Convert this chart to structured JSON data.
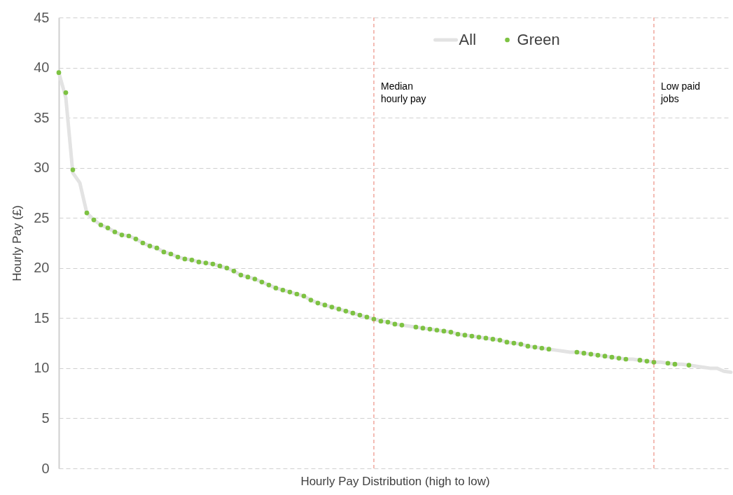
{
  "chart_data": {
    "type": "line",
    "xlabel": "Hourly Pay Distribution (high to low)",
    "ylabel": "Hourly Pay (£)",
    "categories": [
      null,
      null,
      null,
      null,
      null,
      null,
      null,
      null,
      null,
      null,
      null,
      null,
      null,
      null,
      null,
      null,
      null,
      null,
      null,
      null,
      null,
      null,
      null,
      null,
      null,
      null,
      null,
      null,
      null,
      null,
      null,
      null,
      null,
      null,
      null,
      null,
      null,
      null,
      null,
      null,
      null,
      null,
      null,
      null,
      null,
      null,
      null,
      null,
      null,
      null,
      null,
      null,
      null,
      null,
      null,
      null,
      null,
      null,
      null,
      null,
      null,
      null,
      null,
      null,
      null,
      null,
      null,
      null,
      null,
      null,
      null,
      null,
      null,
      null,
      null,
      null,
      null,
      null,
      null,
      null,
      null,
      null,
      null,
      null,
      null,
      null,
      null,
      null,
      null,
      null,
      null,
      null,
      null,
      null,
      null,
      null,
      null
    ],
    "series": [
      {
        "name": "All",
        "color": "#e3e3e3",
        "values": [
          39.5,
          37.0,
          29.5,
          28.5,
          25.5,
          24.8,
          24.3,
          24.0,
          23.6,
          23.3,
          23.2,
          22.9,
          22.5,
          22.2,
          22.0,
          21.6,
          21.4,
          21.1,
          20.9,
          20.8,
          20.6,
          20.5,
          20.4,
          20.2,
          20.0,
          19.7,
          19.3,
          19.1,
          18.9,
          18.6,
          18.3,
          18.0,
          17.8,
          17.6,
          17.4,
          17.2,
          16.8,
          16.5,
          16.3,
          16.1,
          15.9,
          15.7,
          15.5,
          15.3,
          15.1,
          14.9,
          14.7,
          14.6,
          14.4,
          14.3,
          14.2,
          14.1,
          14.0,
          13.9,
          13.8,
          13.7,
          13.6,
          13.4,
          13.3,
          13.2,
          13.1,
          13.0,
          12.9,
          12.8,
          12.6,
          12.5,
          12.4,
          12.2,
          12.1,
          12.0,
          11.9,
          11.8,
          11.7,
          11.6,
          11.6,
          11.5,
          11.4,
          11.3,
          11.2,
          11.1,
          11.0,
          10.9,
          10.9,
          10.8,
          10.7,
          10.6,
          10.6,
          10.5,
          10.4,
          10.4,
          10.3,
          10.2,
          10.1,
          10.0,
          10.0,
          9.7,
          9.6
        ]
      },
      {
        "name": "Green",
        "type": "scatter",
        "marker": "circle",
        "color": "#7dc242",
        "values": [
          39.5,
          37.5,
          29.8,
          null,
          25.5,
          24.8,
          24.3,
          24.0,
          23.6,
          23.3,
          23.2,
          22.9,
          22.5,
          22.2,
          22.0,
          21.6,
          21.4,
          21.1,
          20.9,
          20.8,
          20.6,
          20.5,
          20.4,
          20.2,
          20.0,
          19.7,
          19.3,
          19.1,
          18.9,
          18.6,
          18.3,
          18.0,
          17.8,
          17.6,
          17.4,
          17.2,
          16.8,
          16.5,
          16.3,
          16.1,
          15.9,
          15.7,
          15.5,
          15.3,
          15.1,
          14.9,
          14.7,
          14.6,
          14.4,
          14.3,
          null,
          14.1,
          14.0,
          13.9,
          13.8,
          13.7,
          13.6,
          13.4,
          13.3,
          13.2,
          13.1,
          13.0,
          12.9,
          12.8,
          12.6,
          12.5,
          12.4,
          12.2,
          12.1,
          12.0,
          11.9,
          null,
          null,
          null,
          11.6,
          11.5,
          11.4,
          11.3,
          11.2,
          11.1,
          11.0,
          10.9,
          null,
          10.8,
          10.7,
          10.6,
          null,
          10.5,
          10.4,
          null,
          10.3,
          null,
          null,
          null,
          null,
          null,
          null
        ]
      }
    ],
    "ylim": [
      0,
      45
    ],
    "yticks": [
      0,
      5,
      10,
      15,
      20,
      25,
      30,
      35,
      40,
      45
    ],
    "grid": "y",
    "legend": "top",
    "annotations": [
      "Median\nhourly pay",
      "Low paid\njobs"
    ]
  }
}
